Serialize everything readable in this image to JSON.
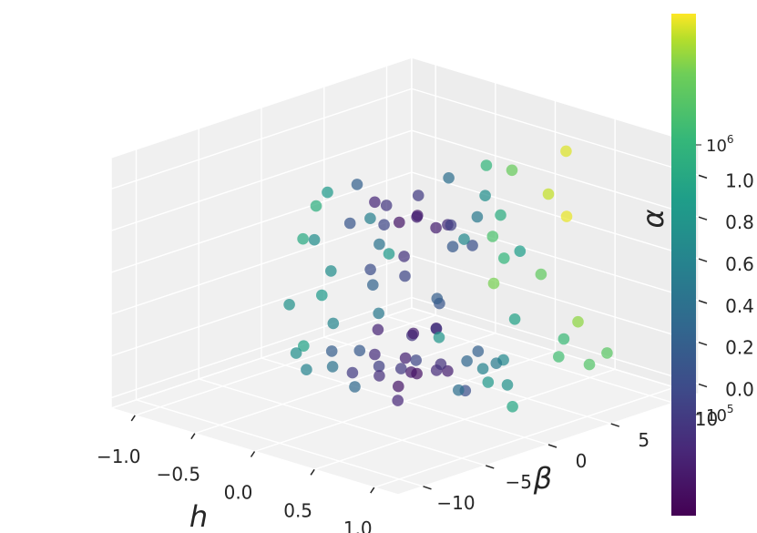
{
  "chart_data": {
    "type": "scatter",
    "subtype": "3d-scatter",
    "title": "",
    "xlabel": "h",
    "ylabel": "β",
    "zlabel": "α",
    "colorbar": {
      "scale": "log",
      "cmap": "viridis",
      "range": [
        30000,
        3000000
      ],
      "tick_labels": [
        {
          "base": "10",
          "exp": "5",
          "value": 100000
        },
        {
          "base": "10",
          "exp": "6",
          "value": 1000000
        }
      ]
    },
    "x_ticks": [
      "−1.0",
      "−0.5",
      "0.0",
      "0.5",
      "1.0"
    ],
    "y_ticks": [
      "−10",
      "−5",
      "0",
      "5",
      "10"
    ],
    "z_ticks": [
      "0.0",
      "0.2",
      "0.4",
      "0.6",
      "0.8",
      "1.0"
    ],
    "xlim": [
      -1.2,
      1.2
    ],
    "ylim": [
      -12,
      12
    ],
    "zlim": [
      -0.05,
      1.15
    ],
    "grid": true,
    "clusters_note": "approximate point cloud: dense low-alpha core near h≈0, beta≈0; upper lobe near alpha≈0.8; sparse high-valued points toward beta≈10",
    "points": [
      {
        "x": 0.0,
        "y": 0.5,
        "z": 0.08,
        "c": 45000
      },
      {
        "x": 0.1,
        "y": 0.0,
        "z": 0.1,
        "c": 40000
      },
      {
        "x": -0.1,
        "y": 1.0,
        "z": 0.12,
        "c": 50000
      },
      {
        "x": 0.05,
        "y": -1.0,
        "z": 0.05,
        "c": 42000
      },
      {
        "x": -0.2,
        "y": -0.5,
        "z": 0.15,
        "c": 60000
      },
      {
        "x": 0.2,
        "y": 1.5,
        "z": 0.1,
        "c": 48000
      },
      {
        "x": 0.15,
        "y": -2.0,
        "z": 0.02,
        "c": 55000
      },
      {
        "x": -0.15,
        "y": 2.0,
        "z": 0.2,
        "c": 70000
      },
      {
        "x": 0.3,
        "y": 0.0,
        "z": 0.18,
        "c": 65000
      },
      {
        "x": -0.3,
        "y": 0.8,
        "z": 0.05,
        "c": 80000
      },
      {
        "x": 0.25,
        "y": -1.5,
        "z": 0.22,
        "c": 90000
      },
      {
        "x": -0.25,
        "y": -1.8,
        "z": 0.08,
        "c": 75000
      },
      {
        "x": 0.0,
        "y": 2.5,
        "z": 0.25,
        "c": 52000
      },
      {
        "x": 0.4,
        "y": 1.0,
        "z": 0.05,
        "c": 110000
      },
      {
        "x": -0.4,
        "y": 0.2,
        "z": 0.12,
        "c": 130000
      },
      {
        "x": 0.1,
        "y": -3.0,
        "z": 0.15,
        "c": 62000
      },
      {
        "x": -0.05,
        "y": 3.0,
        "z": 0.03,
        "c": 58000
      },
      {
        "x": 0.35,
        "y": 2.5,
        "z": 0.2,
        "c": 150000
      },
      {
        "x": -0.35,
        "y": -2.5,
        "z": 0.18,
        "c": 140000
      },
      {
        "x": 0.05,
        "y": 0.2,
        "z": 0.28,
        "c": 47000
      },
      {
        "x": -0.1,
        "y": -1.2,
        "z": 0.3,
        "c": 53000
      },
      {
        "x": 0.2,
        "y": 0.6,
        "z": 0.32,
        "c": 68000
      },
      {
        "x": -0.2,
        "y": 1.6,
        "z": 0.04,
        "c": 72000
      },
      {
        "x": 0.5,
        "y": -0.5,
        "z": 0.1,
        "c": 200000
      },
      {
        "x": -0.5,
        "y": -1.0,
        "z": 0.05,
        "c": 220000
      },
      {
        "x": 0.45,
        "y": 3.0,
        "z": 0.15,
        "c": 260000
      },
      {
        "x": -0.45,
        "y": 2.2,
        "z": 0.25,
        "c": 240000
      },
      {
        "x": 0.6,
        "y": 0.5,
        "z": 0.2,
        "c": 300000
      },
      {
        "x": -0.6,
        "y": 0.0,
        "z": 0.22,
        "c": 320000
      },
      {
        "x": 0.0,
        "y": -4.0,
        "z": 0.1,
        "c": 180000
      },
      {
        "x": 0.1,
        "y": 4.0,
        "z": 0.08,
        "c": 170000
      },
      {
        "x": -0.7,
        "y": -2.0,
        "z": 0.1,
        "c": 400000
      },
      {
        "x": 0.7,
        "y": 1.5,
        "z": 0.12,
        "c": 420000
      },
      {
        "x": -0.8,
        "y": 1.0,
        "z": 0.3,
        "c": 500000
      },
      {
        "x": 0.8,
        "y": -1.0,
        "z": 0.2,
        "c": 480000
      },
      {
        "x": 0.3,
        "y": 5.0,
        "z": 0.1,
        "c": 350000
      },
      {
        "x": -0.3,
        "y": -5.0,
        "z": 0.15,
        "c": 300000
      },
      {
        "x": -0.9,
        "y": 0.5,
        "z": 0.05,
        "c": 600000
      },
      {
        "x": 0.9,
        "y": 0.0,
        "z": 0.08,
        "c": 650000
      },
      {
        "x": 0.0,
        "y": 1.0,
        "z": 0.82,
        "c": 45000
      },
      {
        "x": 0.1,
        "y": 0.0,
        "z": 0.85,
        "c": 50000
      },
      {
        "x": -0.1,
        "y": 0.5,
        "z": 0.78,
        "c": 42000
      },
      {
        "x": 0.2,
        "y": 1.5,
        "z": 0.8,
        "c": 60000
      },
      {
        "x": -0.2,
        "y": -0.5,
        "z": 0.88,
        "c": 55000
      },
      {
        "x": 0.05,
        "y": 2.0,
        "z": 0.75,
        "c": 48000
      },
      {
        "x": -0.05,
        "y": -1.0,
        "z": 0.9,
        "c": 70000
      },
      {
        "x": 0.3,
        "y": 0.8,
        "z": 0.83,
        "c": 80000
      },
      {
        "x": -0.3,
        "y": 1.2,
        "z": 0.72,
        "c": 90000
      },
      {
        "x": 0.15,
        "y": -1.5,
        "z": 0.7,
        "c": 65000
      },
      {
        "x": -0.15,
        "y": 2.5,
        "z": 0.86,
        "c": 75000
      },
      {
        "x": 0.4,
        "y": 0.0,
        "z": 0.76,
        "c": 130000
      },
      {
        "x": -0.4,
        "y": 0.0,
        "z": 0.92,
        "c": 150000
      },
      {
        "x": 0.25,
        "y": 3.0,
        "z": 0.68,
        "c": 110000
      },
      {
        "x": -0.25,
        "y": -2.0,
        "z": 0.8,
        "c": 120000
      },
      {
        "x": 0.5,
        "y": 1.0,
        "z": 0.9,
        "c": 250000
      },
      {
        "x": -0.5,
        "y": 2.0,
        "z": 0.7,
        "c": 280000
      },
      {
        "x": 0.6,
        "y": -1.0,
        "z": 0.85,
        "c": 350000
      },
      {
        "x": -0.6,
        "y": -1.5,
        "z": 0.65,
        "c": 380000
      },
      {
        "x": 0.0,
        "y": 3.5,
        "z": 0.95,
        "c": 200000
      },
      {
        "x": 0.1,
        "y": -3.0,
        "z": 0.78,
        "c": 220000
      },
      {
        "x": -0.7,
        "y": 0.5,
        "z": 0.82,
        "c": 500000
      },
      {
        "x": 0.7,
        "y": 2.5,
        "z": 0.74,
        "c": 550000
      },
      {
        "x": -0.8,
        "y": -0.5,
        "z": 0.6,
        "c": 700000
      },
      {
        "x": 0.8,
        "y": 0.0,
        "z": 0.98,
        "c": 750000
      },
      {
        "x": -0.9,
        "y": 1.5,
        "z": 0.7,
        "c": 800000
      },
      {
        "x": 0.2,
        "y": 4.5,
        "z": 0.88,
        "c": 400000
      },
      {
        "x": -0.2,
        "y": -4.0,
        "z": 0.62,
        "c": 380000
      },
      {
        "x": 0.0,
        "y": 0.0,
        "z": 0.55,
        "c": 90000
      },
      {
        "x": 0.3,
        "y": -0.3,
        "z": 0.5,
        "c": 140000
      },
      {
        "x": -0.3,
        "y": 0.3,
        "z": 0.45,
        "c": 160000
      },
      {
        "x": 0.1,
        "y": 1.8,
        "z": 0.4,
        "c": 120000
      },
      {
        "x": -0.1,
        "y": -1.8,
        "z": 0.6,
        "c": 100000
      },
      {
        "x": 0.5,
        "y": 4.0,
        "z": 0.35,
        "c": 600000
      },
      {
        "x": -0.5,
        "y": 3.5,
        "z": 0.5,
        "c": 500000
      },
      {
        "x": 0.6,
        "y": -3.0,
        "z": 0.42,
        "c": 450000
      },
      {
        "x": -0.6,
        "y": -3.5,
        "z": 0.38,
        "c": 420000
      },
      {
        "x": 0.2,
        "y": 6.0,
        "z": 0.55,
        "c": 900000
      },
      {
        "x": 0.0,
        "y": 7.0,
        "z": 0.6,
        "c": 1200000
      },
      {
        "x": 0.3,
        "y": 8.0,
        "z": 0.45,
        "c": 1500000
      },
      {
        "x": -0.2,
        "y": 9.0,
        "z": 0.3,
        "c": 1800000
      },
      {
        "x": 0.4,
        "y": 10.0,
        "z": 0.2,
        "c": 2000000
      },
      {
        "x": 0.1,
        "y": 10.5,
        "z": 0.75,
        "c": 2500000
      },
      {
        "x": 0.2,
        "y": 11.0,
        "z": 0.65,
        "c": 2800000
      },
      {
        "x": -0.1,
        "y": 9.5,
        "z": 0.85,
        "c": 1600000
      },
      {
        "x": 0.5,
        "y": 7.5,
        "z": 0.1,
        "c": 1100000
      },
      {
        "x": 0.6,
        "y": 9.0,
        "z": 0.05,
        "c": 1300000
      },
      {
        "x": 0.0,
        "y": 6.5,
        "z": 0.95,
        "c": 900000
      },
      {
        "x": 0.3,
        "y": 10.0,
        "z": 1.0,
        "c": 2700000
      },
      {
        "x": 0.7,
        "y": 6.0,
        "z": 0.25,
        "c": 1000000
      },
      {
        "x": 0.8,
        "y": 8.5,
        "z": 0.15,
        "c": 1400000
      }
    ]
  }
}
